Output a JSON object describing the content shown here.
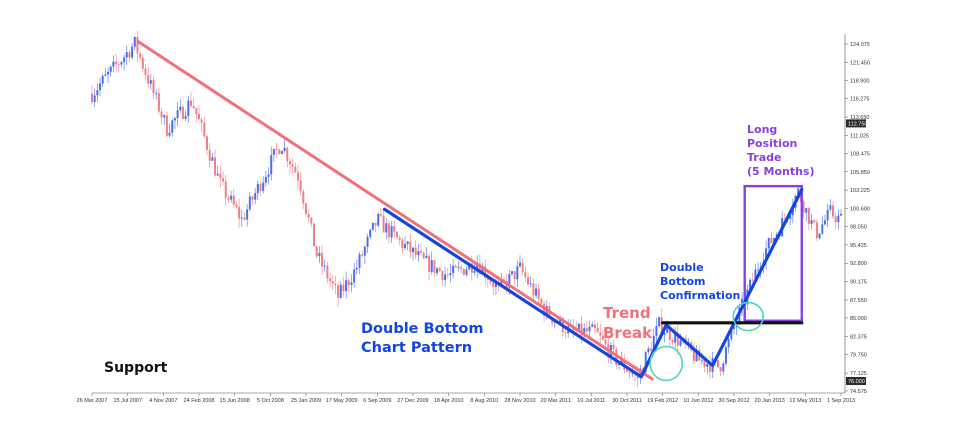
{
  "chart_data": {
    "type": "candlestick",
    "x_tick_labels": [
      "26 Mar 2007",
      "15 Jul 2007",
      "4 Nov 2007",
      "24 Feb 2008",
      "15 Jun 2008",
      "5 Oct 2008",
      "25 Jan 2009",
      "17 May 2009",
      "6 Sep 2009",
      "27 Dec 2009",
      "18 Apr 2010",
      "8 Aug 2010",
      "28 Nov 2010",
      "20 Mar 2011",
      "10 Jul 2011",
      "30 Oct 2011",
      "19 Feb 2012",
      "10 Jun 2012",
      "30 Sep 2012",
      "20 Jan 2013",
      "12 May 2013",
      "1 Sep 2013"
    ],
    "y_ticks": [
      124.075,
      121.45,
      118.9,
      116.275,
      113.65,
      111.025,
      108.475,
      105.85,
      103.225,
      100.6,
      98.05,
      95.425,
      92.8,
      90.175,
      87.55,
      85.0,
      82.375,
      79.75,
      77.125,
      74.575
    ],
    "y_tick_labels": [
      "124.075",
      "121.450",
      "118.900",
      "116.275",
      "113.650",
      "111.025",
      "108.475",
      "105.850",
      "103.225",
      "100.600",
      "98.050",
      "95.425",
      "92.800",
      "90.175",
      "87.550",
      "85.000",
      "82.375",
      "79.750",
      "77.125",
      "74.575"
    ],
    "ylim": [
      74.575,
      124.075
    ],
    "price_tags": [
      {
        "label": "112.750",
        "value": 112.75
      },
      {
        "label": "76.000",
        "value": 76.0
      }
    ],
    "price_path": [
      {
        "x": 0.0,
        "y": 117
      },
      {
        "x": 1.2,
        "y": 124.1
      },
      {
        "x": 2.1,
        "y": 112
      },
      {
        "x": 2.8,
        "y": 116
      },
      {
        "x": 3.6,
        "y": 104
      },
      {
        "x": 4.2,
        "y": 99
      },
      {
        "x": 4.8,
        "y": 105
      },
      {
        "x": 5.3,
        "y": 110
      },
      {
        "x": 5.8,
        "y": 105
      },
      {
        "x": 6.3,
        "y": 94
      },
      {
        "x": 6.9,
        "y": 88
      },
      {
        "x": 7.4,
        "y": 92
      },
      {
        "x": 8.0,
        "y": 99
      },
      {
        "x": 8.6,
        "y": 96
      },
      {
        "x": 9.3,
        "y": 93
      },
      {
        "x": 10.0,
        "y": 91
      },
      {
        "x": 10.8,
        "y": 93
      },
      {
        "x": 11.4,
        "y": 89
      },
      {
        "x": 12.0,
        "y": 92
      },
      {
        "x": 12.7,
        "y": 86
      },
      {
        "x": 13.4,
        "y": 83
      },
      {
        "x": 14.1,
        "y": 83
      },
      {
        "x": 14.7,
        "y": 79
      },
      {
        "x": 15.3,
        "y": 76.5
      },
      {
        "x": 15.9,
        "y": 84
      },
      {
        "x": 16.4,
        "y": 82
      },
      {
        "x": 17.0,
        "y": 79
      },
      {
        "x": 17.6,
        "y": 78
      },
      {
        "x": 18.1,
        "y": 85
      },
      {
        "x": 18.8,
        "y": 94
      },
      {
        "x": 19.3,
        "y": 98
      },
      {
        "x": 19.8,
        "y": 103
      },
      {
        "x": 20.3,
        "y": 97
      },
      {
        "x": 20.7,
        "y": 100
      },
      {
        "x": 21.0,
        "y": 99
      }
    ],
    "lines": [
      {
        "name": "downtrend",
        "color": "#f0717a",
        "points": [
          {
            "x": 1.3,
            "y": 124.4
          },
          {
            "x": 15.7,
            "y": 76.3
          }
        ]
      },
      {
        "name": "double-bottom-pattern",
        "color": "#1346e0",
        "points": [
          {
            "x": 8.2,
            "y": 100.5
          },
          {
            "x": 15.4,
            "y": 76.6
          },
          {
            "x": 16.1,
            "y": 84.0
          },
          {
            "x": 17.4,
            "y": 78.2
          },
          {
            "x": 19.9,
            "y": 103.3
          }
        ]
      },
      {
        "name": "confirmation-level",
        "color": "#111111",
        "points": [
          {
            "x": 16.0,
            "y": 84.3
          },
          {
            "x": 19.9,
            "y": 84.3
          }
        ]
      }
    ],
    "regions": [
      {
        "name": "long-position",
        "color": "#8b3fe0",
        "x0": 18.3,
        "x1": 19.9,
        "y0": 84.6,
        "y1": 103.8
      }
    ],
    "markers": [
      {
        "name": "trend-break-circle",
        "color": "#4dd4c4",
        "x": 16.1,
        "y": 78.5
      },
      {
        "name": "confirmation-circle",
        "color": "#4dd4c4",
        "x": 18.4,
        "y": 85.2
      }
    ],
    "annotations": [
      {
        "id": "support",
        "text": "Support",
        "color": "#111111"
      },
      {
        "id": "pattern",
        "lines": [
          "Double Bottom",
          "Chart Pattern"
        ],
        "color": "#1346e0"
      },
      {
        "id": "trend_break",
        "lines": [
          "Trend",
          "Break"
        ],
        "color": "#f0717a"
      },
      {
        "id": "confirmation",
        "lines": [
          "Double",
          "Bottom",
          "Confirmation"
        ],
        "color": "#1346e0"
      },
      {
        "id": "long_position",
        "lines": [
          "Long",
          "Position",
          "Trade",
          "(5 Months)"
        ],
        "color": "#8b3fe0"
      }
    ],
    "colors": {
      "up": "#4c6ee8",
      "down": "#ef7f86"
    },
    "grid": false,
    "legend": "none"
  }
}
